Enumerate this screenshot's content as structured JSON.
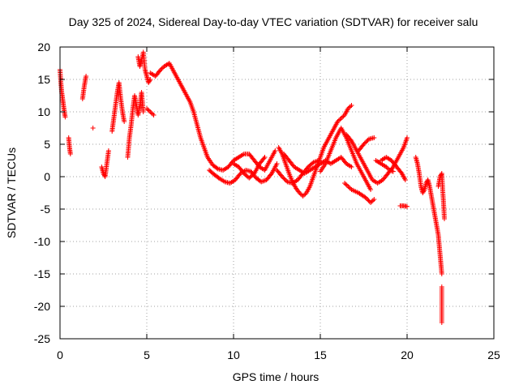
{
  "chart_data": {
    "type": "scatter",
    "title": "Day 325 of 2024, Sidereal Day-to-day VTEC variation (SDTVAR) for receiver salu",
    "xlabel": "GPS time / hours",
    "ylabel": "SDTVAR / TECUs",
    "xlim": [
      0,
      25
    ],
    "ylim": [
      -25,
      20
    ],
    "xticks": [
      0,
      5,
      10,
      15,
      20,
      25
    ],
    "yticks": [
      -25,
      -20,
      -15,
      -10,
      -5,
      0,
      5,
      10,
      15,
      20
    ],
    "grid": true,
    "marker": "plus",
    "color": "#ff0000",
    "series": [
      {
        "name": "SDTVAR",
        "segments": [
          [
            [
              0.0,
              16.5
            ],
            [
              0.05,
              14.5
            ],
            [
              0.1,
              13.0
            ],
            [
              0.15,
              12.0
            ],
            [
              0.2,
              11.0
            ],
            [
              0.25,
              10.0
            ],
            [
              0.3,
              9.2
            ]
          ],
          [
            [
              0.5,
              6.0
            ],
            [
              0.55,
              4.5
            ],
            [
              0.6,
              3.5
            ]
          ],
          [
            [
              1.3,
              12.0
            ],
            [
              1.4,
              14.0
            ],
            [
              1.5,
              15.5
            ]
          ],
          [
            [
              1.9,
              7.5
            ]
          ],
          [
            [
              2.4,
              1.5
            ],
            [
              2.5,
              0.5
            ],
            [
              2.6,
              0.0
            ],
            [
              2.7,
              2.0
            ],
            [
              2.8,
              4.0
            ]
          ],
          [
            [
              3.0,
              7.0
            ],
            [
              3.1,
              9.0
            ],
            [
              3.2,
              11.0
            ],
            [
              3.3,
              13.0
            ],
            [
              3.4,
              14.5
            ],
            [
              3.5,
              12.0
            ],
            [
              3.6,
              10.0
            ],
            [
              3.7,
              8.5
            ]
          ],
          [
            [
              3.9,
              3.0
            ],
            [
              4.0,
              6.0
            ],
            [
              4.1,
              8.0
            ],
            [
              4.2,
              10.5
            ],
            [
              4.3,
              12.5
            ],
            [
              4.4,
              11.0
            ],
            [
              4.5,
              9.5
            ],
            [
              4.6,
              11.0
            ],
            [
              4.7,
              13.0
            ],
            [
              4.8,
              10.0
            ]
          ],
          [
            [
              4.5,
              18.5
            ],
            [
              4.6,
              17.0
            ],
            [
              4.7,
              18.0
            ],
            [
              4.8,
              19.2
            ],
            [
              4.9,
              16.5
            ],
            [
              5.0,
              15.5
            ],
            [
              5.1,
              14.5
            ],
            [
              5.2,
              15.0
            ]
          ],
          [
            [
              5.0,
              10.5
            ],
            [
              5.2,
              10.0
            ],
            [
              5.4,
              9.5
            ]
          ],
          [
            [
              5.2,
              16.0
            ],
            [
              5.5,
              15.5
            ],
            [
              5.8,
              16.5
            ],
            [
              6.0,
              17.0
            ],
            [
              6.3,
              17.5
            ],
            [
              6.5,
              16.5
            ],
            [
              6.7,
              15.5
            ],
            [
              6.9,
              14.5
            ],
            [
              7.1,
              13.5
            ],
            [
              7.3,
              12.5
            ],
            [
              7.5,
              11.5
            ],
            [
              7.7,
              10.0
            ],
            [
              7.9,
              8.0
            ],
            [
              8.1,
              6.0
            ],
            [
              8.3,
              4.5
            ],
            [
              8.5,
              3.0
            ],
            [
              8.8,
              1.8
            ],
            [
              9.1,
              1.2
            ],
            [
              9.4,
              1.0
            ],
            [
              9.7,
              1.5
            ],
            [
              10.0,
              2.5
            ],
            [
              10.3,
              3.0
            ],
            [
              10.6,
              3.5
            ],
            [
              10.9,
              3.5
            ],
            [
              11.2,
              2.5
            ],
            [
              11.5,
              1.5
            ],
            [
              11.8,
              1.0
            ],
            [
              12.1,
              2.5
            ],
            [
              12.4,
              4.0
            ]
          ],
          [
            [
              8.6,
              1.0
            ],
            [
              8.9,
              0.3
            ],
            [
              9.2,
              -0.3
            ],
            [
              9.5,
              -0.8
            ],
            [
              9.8,
              -1.0
            ],
            [
              10.1,
              -0.5
            ],
            [
              10.4,
              0.5
            ],
            [
              10.7,
              1.0
            ],
            [
              11.0,
              0.8
            ],
            [
              11.3,
              -0.2
            ],
            [
              11.6,
              -0.8
            ],
            [
              11.9,
              -0.5
            ],
            [
              12.2,
              0.5
            ],
            [
              12.5,
              2.0
            ]
          ],
          [
            [
              10.0,
              2.0
            ],
            [
              10.3,
              1.5
            ],
            [
              10.6,
              0.5
            ],
            [
              10.9,
              -0.2
            ],
            [
              11.2,
              0.5
            ],
            [
              11.5,
              2.0
            ],
            [
              11.8,
              3.0
            ]
          ],
          [
            [
              12.6,
              4.5
            ],
            [
              12.8,
              3.5
            ],
            [
              13.0,
              2.0
            ],
            [
              13.2,
              0.5
            ],
            [
              13.4,
              -0.8
            ],
            [
              13.6,
              -1.8
            ],
            [
              13.8,
              -2.5
            ],
            [
              14.0,
              -3.0
            ],
            [
              14.2,
              -2.5
            ],
            [
              14.4,
              -1.5
            ],
            [
              14.6,
              0.0
            ],
            [
              14.8,
              1.5
            ],
            [
              15.0,
              3.0
            ],
            [
              15.2,
              4.5
            ],
            [
              15.4,
              5.5
            ],
            [
              15.6,
              6.5
            ],
            [
              15.8,
              7.5
            ],
            [
              16.0,
              8.5
            ],
            [
              16.2,
              9.0
            ],
            [
              16.4,
              9.5
            ],
            [
              16.6,
              10.5
            ],
            [
              16.8,
              11.0
            ]
          ],
          [
            [
              12.5,
              1.0
            ],
            [
              12.8,
              0.0
            ],
            [
              13.1,
              -0.8
            ],
            [
              13.4,
              -1.0
            ],
            [
              13.7,
              -0.5
            ],
            [
              14.0,
              0.5
            ],
            [
              14.3,
              1.5
            ],
            [
              14.6,
              2.2
            ],
            [
              14.9,
              2.5
            ]
          ],
          [
            [
              12.9,
              3.5
            ],
            [
              13.2,
              2.5
            ],
            [
              13.5,
              1.5
            ],
            [
              13.8,
              1.0
            ],
            [
              14.1,
              0.5
            ],
            [
              14.4,
              1.0
            ],
            [
              14.7,
              1.5
            ],
            [
              15.0,
              2.0
            ],
            [
              15.3,
              2.5
            ],
            [
              15.6,
              2.0
            ],
            [
              15.9,
              2.5
            ],
            [
              16.2,
              3.0
            ],
            [
              16.5,
              2.0
            ],
            [
              16.8,
              1.5
            ]
          ],
          [
            [
              15.0,
              0.8
            ],
            [
              15.3,
              2.0
            ],
            [
              15.6,
              4.0
            ],
            [
              15.9,
              6.0
            ],
            [
              16.2,
              7.5
            ],
            [
              16.5,
              6.0
            ],
            [
              16.8,
              4.0
            ],
            [
              17.1,
              2.0
            ],
            [
              17.4,
              0.5
            ],
            [
              17.7,
              -1.0
            ],
            [
              17.9,
              -2.0
            ]
          ],
          [
            [
              16.5,
              6.5
            ],
            [
              16.8,
              5.5
            ],
            [
              17.1,
              4.0
            ],
            [
              17.4,
              2.5
            ],
            [
              17.7,
              1.0
            ],
            [
              18.0,
              -0.5
            ],
            [
              18.3,
              -1.0
            ],
            [
              18.6,
              -0.5
            ],
            [
              18.9,
              0.5
            ],
            [
              19.2,
              1.5
            ],
            [
              19.5,
              3.0
            ],
            [
              19.8,
              4.5
            ],
            [
              20.0,
              6.0
            ]
          ],
          [
            [
              16.4,
              -1.0
            ],
            [
              16.8,
              -2.0
            ],
            [
              17.2,
              -2.5
            ],
            [
              17.6,
              -3.2
            ],
            [
              17.9,
              -4.0
            ],
            [
              18.1,
              -3.5
            ]
          ],
          [
            [
              17.2,
              4.0
            ],
            [
              17.5,
              5.0
            ],
            [
              17.8,
              5.8
            ],
            [
              18.1,
              6.0
            ]
          ],
          [
            [
              18.2,
              2.5
            ],
            [
              18.5,
              2.0
            ],
            [
              18.8,
              1.5
            ],
            [
              19.0,
              1.0
            ],
            [
              19.2,
              0.8
            ]
          ],
          [
            [
              18.5,
              2.5
            ],
            [
              18.8,
              3.0
            ],
            [
              19.1,
              2.5
            ],
            [
              19.4,
              1.5
            ],
            [
              19.7,
              0.5
            ],
            [
              19.9,
              -0.5
            ]
          ],
          [
            [
              19.6,
              -4.5
            ],
            [
              19.8,
              -4.5
            ],
            [
              20.0,
              -4.6
            ]
          ],
          [
            [
              20.5,
              3.0
            ],
            [
              20.6,
              2.0
            ],
            [
              20.7,
              0.5
            ],
            [
              20.8,
              -1.5
            ],
            [
              20.9,
              -2.5
            ],
            [
              21.0,
              -2.0
            ],
            [
              21.1,
              -1.0
            ],
            [
              21.2,
              -0.5
            ],
            [
              21.3,
              -1.5
            ],
            [
              21.4,
              -3.0
            ],
            [
              21.5,
              -4.5
            ],
            [
              21.6,
              -6.0
            ],
            [
              21.7,
              -7.5
            ],
            [
              21.8,
              -9.0
            ],
            [
              21.85,
              -10.5
            ],
            [
              21.9,
              -12.0
            ],
            [
              21.95,
              -13.5
            ],
            [
              22.0,
              -15.0
            ]
          ],
          [
            [
              21.8,
              -1.5
            ],
            [
              21.9,
              0.0
            ],
            [
              22.0,
              0.5
            ],
            [
              22.05,
              -2.0
            ],
            [
              22.1,
              -4.0
            ],
            [
              22.15,
              -6.5
            ]
          ],
          [
            [
              22.0,
              -17.0
            ],
            [
              22.0,
              -19.5
            ],
            [
              22.0,
              -21.5
            ],
            [
              22.0,
              -22.5
            ]
          ]
        ]
      }
    ]
  }
}
